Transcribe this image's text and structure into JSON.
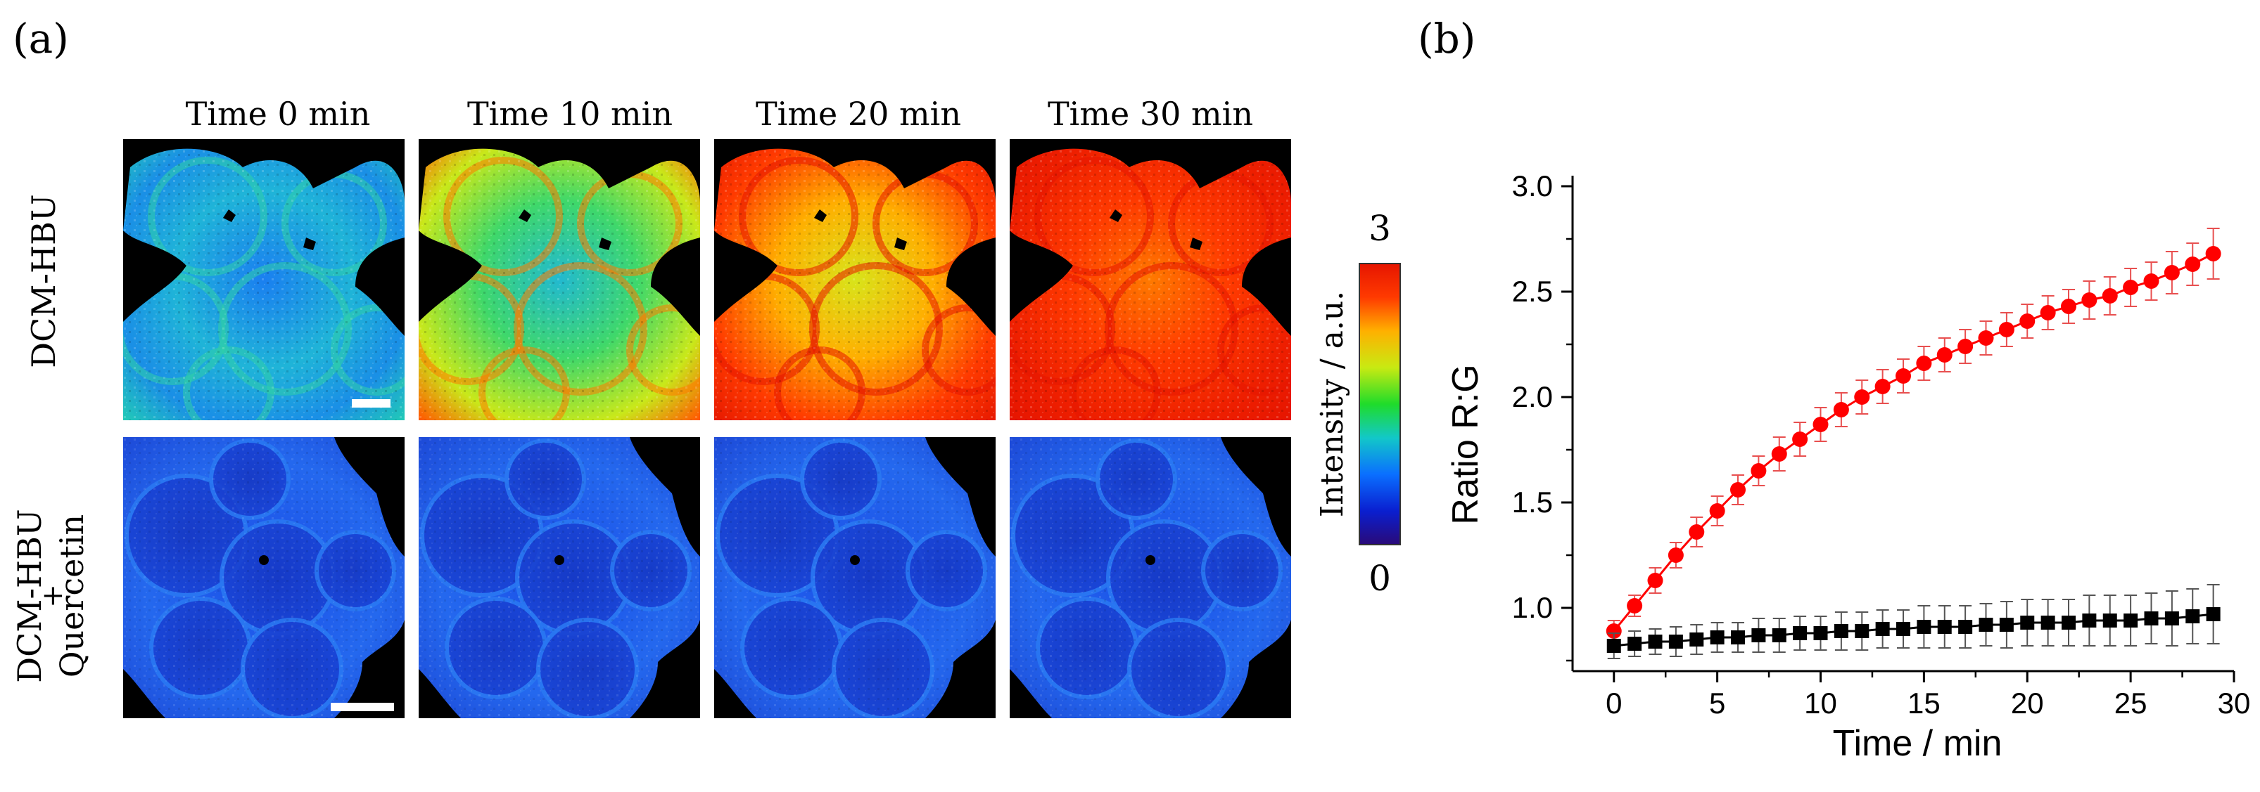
{
  "panel_a": {
    "label": "(a)",
    "time_labels": [
      "Time 0 min",
      "Time 10 min",
      "Time 20 min",
      "Time 30 min"
    ],
    "row_labels": [
      "DCM-HBU",
      "DCM-HBU",
      "+",
      "Quercetin"
    ],
    "colorbar": {
      "max_label": "3",
      "min_label": "0",
      "axis_label": "Intensity / a.u.",
      "gradient_colors": [
        "#2a0a78",
        "#0a1fd0",
        "#0a6fff",
        "#12c8c8",
        "#1fdc2a",
        "#c8ea12",
        "#ffb000",
        "#ff3a00",
        "#e61500"
      ]
    }
  },
  "chart_data": {
    "type": "scatter",
    "label": "(b)",
    "title": "",
    "xlabel": "Time / min",
    "ylabel": "Ratio R:G",
    "xlim": [
      -2,
      30
    ],
    "ylim": [
      0.7,
      3.05
    ],
    "xticks": [
      "0",
      "5",
      "10",
      "15",
      "20",
      "25",
      "30"
    ],
    "yticks": [
      "1.0",
      "1.5",
      "2.0",
      "2.5",
      "3.0"
    ],
    "grid": false,
    "legend": "none",
    "series": [
      {
        "color": "#ff0000",
        "marker": "circle",
        "x": [
          0,
          1,
          2,
          3,
          4,
          5,
          6,
          7,
          8,
          9,
          10,
          11,
          12,
          13,
          14,
          15,
          16,
          17,
          18,
          19,
          20,
          21,
          22,
          23,
          24,
          25,
          26,
          27,
          28,
          29
        ],
        "y": [
          0.89,
          1.01,
          1.13,
          1.25,
          1.36,
          1.46,
          1.56,
          1.65,
          1.73,
          1.8,
          1.87,
          1.94,
          2.0,
          2.05,
          2.1,
          2.16,
          2.2,
          2.24,
          2.28,
          2.32,
          2.36,
          2.4,
          2.43,
          2.46,
          2.48,
          2.52,
          2.55,
          2.59,
          2.63,
          2.68
        ],
        "error": [
          0.05,
          0.05,
          0.06,
          0.06,
          0.07,
          0.07,
          0.07,
          0.07,
          0.08,
          0.08,
          0.08,
          0.08,
          0.08,
          0.08,
          0.08,
          0.08,
          0.08,
          0.08,
          0.08,
          0.08,
          0.08,
          0.08,
          0.08,
          0.09,
          0.09,
          0.09,
          0.09,
          0.1,
          0.1,
          0.12
        ]
      },
      {
        "color": "#000000",
        "marker": "square",
        "x": [
          0,
          1,
          2,
          3,
          4,
          5,
          6,
          7,
          8,
          9,
          10,
          11,
          12,
          13,
          14,
          15,
          16,
          17,
          18,
          19,
          20,
          21,
          22,
          23,
          24,
          25,
          26,
          27,
          28,
          29
        ],
        "y": [
          0.82,
          0.83,
          0.84,
          0.84,
          0.85,
          0.86,
          0.86,
          0.87,
          0.87,
          0.88,
          0.88,
          0.89,
          0.89,
          0.9,
          0.9,
          0.91,
          0.91,
          0.91,
          0.92,
          0.92,
          0.93,
          0.93,
          0.93,
          0.94,
          0.94,
          0.94,
          0.95,
          0.95,
          0.96,
          0.97
        ],
        "error": [
          0.06,
          0.06,
          0.06,
          0.07,
          0.07,
          0.07,
          0.07,
          0.08,
          0.08,
          0.08,
          0.08,
          0.09,
          0.09,
          0.09,
          0.09,
          0.1,
          0.1,
          0.1,
          0.1,
          0.11,
          0.11,
          0.11,
          0.11,
          0.12,
          0.12,
          0.12,
          0.12,
          0.13,
          0.13,
          0.14
        ]
      }
    ]
  }
}
